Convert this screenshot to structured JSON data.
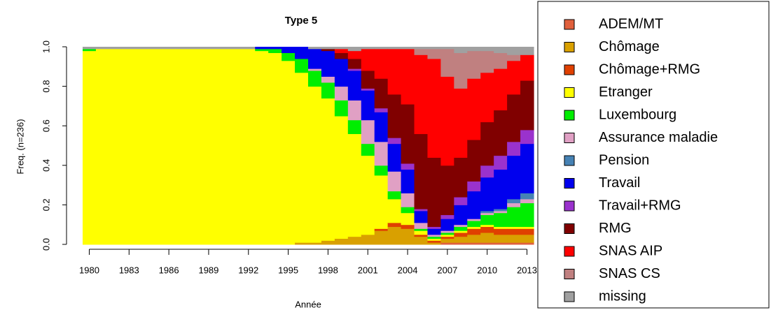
{
  "chart_data": {
    "type": "stacked_area",
    "title": "Type 5",
    "x_label": "Année",
    "y_label": "Freq. (n=236)",
    "x": [
      1980,
      1981,
      1982,
      1983,
      1984,
      1985,
      1986,
      1987,
      1988,
      1989,
      1990,
      1991,
      1992,
      1993,
      1994,
      1995,
      1996,
      1997,
      1998,
      1999,
      2000,
      2001,
      2002,
      2003,
      2004,
      2005,
      2006,
      2007,
      2008,
      2009,
      2010,
      2011,
      2012,
      2013
    ],
    "xlim": [
      1979.5,
      2013.5
    ],
    "xticks": [
      1980,
      1983,
      1986,
      1989,
      1992,
      1995,
      1998,
      2001,
      2004,
      2007,
      2010,
      2013
    ],
    "ylim": [
      0,
      1
    ],
    "yticks": [
      {
        "value": 0,
        "label": "0.0"
      },
      0.2,
      0.4,
      0.6,
      0.8,
      {
        "value": 1,
        "label": "1.0"
      }
    ],
    "legend": "right",
    "series": [
      {
        "name": "ADEM/MT",
        "color": "#e0603c",
        "values": [
          0,
          0,
          0,
          0,
          0,
          0,
          0,
          0,
          0,
          0,
          0,
          0,
          0,
          0,
          0,
          0,
          0,
          0,
          0,
          0,
          0,
          0,
          0,
          0,
          0,
          0,
          0,
          0.01,
          0.01,
          0.01,
          0.01,
          0.01,
          0.01,
          0.01
        ]
      },
      {
        "name": "Chômage",
        "color": "#d9a000",
        "values": [
          0,
          0,
          0,
          0,
          0,
          0,
          0,
          0,
          0,
          0,
          0,
          0,
          0,
          0,
          0,
          0,
          0.01,
          0.01,
          0.02,
          0.03,
          0.04,
          0.05,
          0.07,
          0.09,
          0.08,
          0.04,
          0.01,
          0.02,
          0.03,
          0.04,
          0.05,
          0.04,
          0.04,
          0.04
        ]
      },
      {
        "name": "Chômage+RMG",
        "color": "#e04000",
        "values": [
          0,
          0,
          0,
          0,
          0,
          0,
          0,
          0,
          0,
          0,
          0,
          0,
          0,
          0,
          0,
          0,
          0,
          0,
          0,
          0,
          0,
          0,
          0.01,
          0.02,
          0.02,
          0.01,
          0.01,
          0.01,
          0.02,
          0.03,
          0.03,
          0.03,
          0.03,
          0.03
        ]
      },
      {
        "name": "Etranger",
        "color": "#ffff00",
        "values": [
          0.98,
          0.99,
          0.99,
          0.99,
          0.99,
          0.99,
          0.99,
          0.99,
          0.99,
          0.99,
          0.99,
          0.99,
          0.99,
          0.98,
          0.97,
          0.93,
          0.86,
          0.79,
          0.72,
          0.62,
          0.52,
          0.4,
          0.27,
          0.12,
          0.06,
          0.02,
          0.01,
          0.01,
          0.01,
          0.01,
          0.01,
          0.01,
          0.01,
          0.01
        ]
      },
      {
        "name": "Luxembourg",
        "color": "#00ee00",
        "values": [
          0.01,
          0,
          0,
          0,
          0,
          0,
          0,
          0,
          0,
          0,
          0,
          0,
          0,
          0.01,
          0.02,
          0.04,
          0.07,
          0.08,
          0.08,
          0.08,
          0.07,
          0.06,
          0.05,
          0.04,
          0.03,
          0.01,
          0.01,
          0.01,
          0.02,
          0.03,
          0.05,
          0.07,
          0.1,
          0.12
        ]
      },
      {
        "name": "Assurance maladie",
        "color": "#e0a0c4",
        "values": [
          0,
          0,
          0,
          0,
          0,
          0,
          0,
          0,
          0,
          0,
          0,
          0,
          0,
          0,
          0,
          0,
          0,
          0.01,
          0.03,
          0.07,
          0.1,
          0.12,
          0.12,
          0.1,
          0.07,
          0.03,
          0.01,
          0.01,
          0.01,
          0.01,
          0.01,
          0.01,
          0.02,
          0.02
        ]
      },
      {
        "name": "Pension",
        "color": "#4682b4",
        "values": [
          0,
          0,
          0,
          0,
          0,
          0,
          0,
          0,
          0,
          0,
          0,
          0,
          0,
          0,
          0,
          0,
          0,
          0,
          0,
          0,
          0,
          0,
          0,
          0,
          0,
          0,
          0,
          0,
          0,
          0,
          0.01,
          0.01,
          0.02,
          0.03
        ]
      },
      {
        "name": "Travail",
        "color": "#0000ee",
        "values": [
          0,
          0,
          0,
          0,
          0,
          0,
          0,
          0,
          0,
          0,
          0,
          0,
          0,
          0.01,
          0.01,
          0.03,
          0.06,
          0.1,
          0.13,
          0.14,
          0.15,
          0.15,
          0.15,
          0.14,
          0.12,
          0.06,
          0.03,
          0.06,
          0.1,
          0.14,
          0.17,
          0.2,
          0.22,
          0.25
        ]
      },
      {
        "name": "Travail+RMG",
        "color": "#9a32cd",
        "values": [
          0,
          0,
          0,
          0,
          0,
          0,
          0,
          0,
          0,
          0,
          0,
          0,
          0,
          0,
          0,
          0,
          0,
          0,
          0,
          0,
          0.01,
          0.01,
          0.02,
          0.03,
          0.03,
          0.01,
          0.01,
          0.02,
          0.04,
          0.05,
          0.06,
          0.07,
          0.07,
          0.07
        ]
      },
      {
        "name": "RMG",
        "color": "#800000",
        "values": [
          0,
          0,
          0,
          0,
          0,
          0,
          0,
          0,
          0,
          0,
          0,
          0,
          0,
          0,
          0,
          0,
          0,
          0,
          0.01,
          0.03,
          0.05,
          0.09,
          0.15,
          0.22,
          0.3,
          0.38,
          0.35,
          0.25,
          0.2,
          0.21,
          0.22,
          0.23,
          0.24,
          0.25
        ]
      },
      {
        "name": "SNAS AIP",
        "color": "#ff0000",
        "values": [
          0,
          0,
          0,
          0,
          0,
          0,
          0,
          0,
          0,
          0,
          0,
          0,
          0,
          0,
          0,
          0,
          0,
          0,
          0,
          0.02,
          0.04,
          0.11,
          0.15,
          0.23,
          0.28,
          0.4,
          0.5,
          0.45,
          0.35,
          0.31,
          0.25,
          0.21,
          0.17,
          0.13
        ]
      },
      {
        "name": "SNAS CS",
        "color": "#c08080",
        "values": [
          0,
          0,
          0,
          0,
          0,
          0,
          0,
          0,
          0,
          0,
          0,
          0,
          0,
          0,
          0,
          0,
          0,
          0,
          0,
          0,
          0,
          0,
          0,
          0,
          0,
          0.03,
          0.05,
          0.14,
          0.18,
          0.14,
          0.11,
          0.08,
          0.03,
          0
        ]
      },
      {
        "name": "missing",
        "color": "#a0a0a0",
        "values": [
          0.01,
          0.01,
          0.01,
          0.01,
          0.01,
          0.01,
          0.01,
          0.01,
          0.01,
          0.01,
          0.01,
          0.01,
          0.01,
          0,
          0,
          0,
          0,
          0.01,
          0.01,
          0.01,
          0.02,
          0.01,
          0.01,
          0.01,
          0.01,
          0.01,
          0.01,
          0.01,
          0.03,
          0.02,
          0.02,
          0.03,
          0.04,
          0.04
        ]
      }
    ]
  }
}
